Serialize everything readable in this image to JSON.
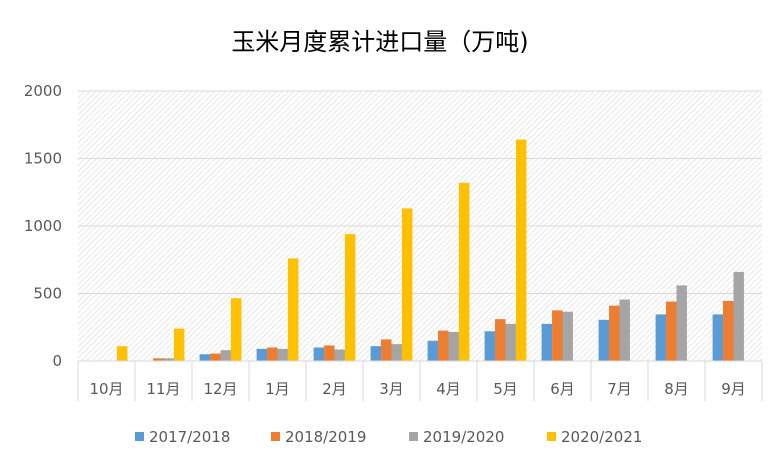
{
  "chart_data": {
    "type": "bar",
    "title": "玉米月度累计进口量（万吨)",
    "xlabel": "",
    "ylabel": "",
    "categories": [
      "10月",
      "11月",
      "12月",
      "1月",
      "2月",
      "3月",
      "4月",
      "5月",
      "6月",
      "7月",
      "8月",
      "9月"
    ],
    "ylim": [
      0,
      2000
    ],
    "yticks": [
      "0",
      "500",
      "1000",
      "1500",
      "2000"
    ],
    "grid": true,
    "legend_position": "bottom",
    "series": [
      {
        "name": "2017/2018",
        "color": "#5B9BD5",
        "values": [
          0,
          0,
          50,
          90,
          100,
          110,
          150,
          220,
          275,
          305,
          345,
          345
        ]
      },
      {
        "name": "2018/2019",
        "color": "#ED7D31",
        "values": [
          0,
          20,
          55,
          100,
          115,
          160,
          225,
          310,
          375,
          410,
          440,
          445
        ]
      },
      {
        "name": "2019/2020",
        "color": "#A5A5A5",
        "values": [
          0,
          20,
          80,
          90,
          85,
          125,
          215,
          275,
          365,
          455,
          560,
          660
        ]
      },
      {
        "name": "2020/2021",
        "color": "#FFC000",
        "values": [
          110,
          240,
          465,
          760,
          940,
          1130,
          1320,
          1640,
          0,
          0,
          0,
          0
        ]
      }
    ]
  }
}
